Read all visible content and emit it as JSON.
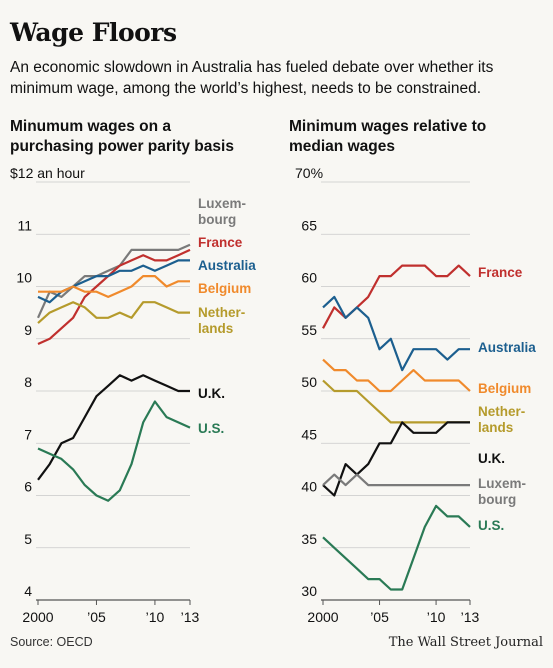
{
  "title": "Wage Floors",
  "subtitle": "An economic slowdown in Australia has fueled debate over whether its minimum wage, among the world’s highest, needs to be constrained.",
  "source": "Source: OECD",
  "publisher": "The Wall Street Journal",
  "chart_data": [
    {
      "type": "line",
      "title": "Minumum wages on a purchasing power parity basis",
      "title_lines": [
        "Minumum wages on a",
        "purchasing power parity basis"
      ],
      "ylabel": "$12 an hour",
      "ylim": [
        4,
        12
      ],
      "yticks": [
        "$12 an hour",
        "11",
        "10",
        "9",
        "8",
        "7",
        "6",
        "5",
        "4"
      ],
      "xlim": [
        2000,
        2013
      ],
      "xticks": [
        {
          "x": 2000,
          "label": "2000"
        },
        {
          "x": 2005,
          "label": "’05"
        },
        {
          "x": 2010,
          "label": "’10"
        },
        {
          "x": 2013,
          "label": "’13"
        }
      ],
      "grid": true,
      "x": [
        2000,
        2001,
        2002,
        2003,
        2004,
        2005,
        2006,
        2007,
        2008,
        2009,
        2010,
        2011,
        2012,
        2013
      ],
      "series": [
        {
          "name": "Luxembourg",
          "label_lines": [
            "Luxem-",
            "bourg"
          ],
          "color": "#7a7a7a",
          "values": [
            9.4,
            9.9,
            9.8,
            10.0,
            10.2,
            10.2,
            10.3,
            10.4,
            10.7,
            10.7,
            10.7,
            10.7,
            10.7,
            10.8
          ]
        },
        {
          "name": "France",
          "label_lines": [
            "France"
          ],
          "color": "#c0302e",
          "values": [
            8.9,
            9.0,
            9.2,
            9.4,
            9.8,
            10.0,
            10.2,
            10.4,
            10.5,
            10.6,
            10.5,
            10.5,
            10.6,
            10.7
          ]
        },
        {
          "name": "Australia",
          "label_lines": [
            "Australia"
          ],
          "color": "#1c5f8f",
          "values": [
            9.8,
            9.7,
            9.9,
            10.0,
            10.1,
            10.2,
            10.2,
            10.3,
            10.3,
            10.4,
            10.3,
            10.4,
            10.5,
            10.5
          ]
        },
        {
          "name": "Belgium",
          "label_lines": [
            "Belgium"
          ],
          "color": "#f08a2c",
          "values": [
            9.9,
            9.9,
            9.9,
            10.0,
            9.9,
            9.9,
            9.8,
            9.9,
            10.0,
            10.2,
            10.2,
            10.0,
            10.1,
            10.1
          ]
        },
        {
          "name": "Netherlands",
          "label_lines": [
            "Nether-",
            "lands"
          ],
          "color": "#b59b2c",
          "values": [
            9.3,
            9.5,
            9.6,
            9.7,
            9.6,
            9.4,
            9.4,
            9.5,
            9.4,
            9.7,
            9.7,
            9.6,
            9.5,
            9.5
          ]
        },
        {
          "name": "U.K.",
          "label_lines": [
            "U.K."
          ],
          "color": "#111111",
          "values": [
            6.3,
            6.6,
            7.0,
            7.1,
            7.5,
            7.9,
            8.1,
            8.3,
            8.2,
            8.3,
            8.2,
            8.1,
            8.0,
            8.0
          ]
        },
        {
          "name": "U.S.",
          "label_lines": [
            "U.S."
          ],
          "color": "#2a7a55",
          "values": [
            6.9,
            6.8,
            6.7,
            6.5,
            6.2,
            6.0,
            5.9,
            6.1,
            6.6,
            7.4,
            7.8,
            7.5,
            7.4,
            7.3
          ]
        }
      ]
    },
    {
      "type": "line",
      "title": "Minimum wages relative to median wages",
      "title_lines": [
        "Minimum wages relative to",
        "median wages"
      ],
      "ylabel": "70%",
      "ylim": [
        30,
        70
      ],
      "yticks": [
        "70%",
        "65",
        "60",
        "55",
        "50",
        "45",
        "40",
        "35",
        "30"
      ],
      "xlim": [
        2000,
        2013
      ],
      "xticks": [
        {
          "x": 2000,
          "label": "2000"
        },
        {
          "x": 2005,
          "label": "’05"
        },
        {
          "x": 2010,
          "label": "’10"
        },
        {
          "x": 2013,
          "label": "’13"
        }
      ],
      "grid": true,
      "x": [
        2000,
        2001,
        2002,
        2003,
        2004,
        2005,
        2006,
        2007,
        2008,
        2009,
        2010,
        2011,
        2012,
        2013
      ],
      "series": [
        {
          "name": "France",
          "label_lines": [
            "France"
          ],
          "color": "#c0302e",
          "values": [
            56,
            58,
            57,
            58,
            59,
            61,
            61,
            62,
            62,
            62,
            61,
            61,
            62,
            61
          ]
        },
        {
          "name": "Australia",
          "label_lines": [
            "Australia"
          ],
          "color": "#1c5f8f",
          "values": [
            58,
            59,
            57,
            58,
            57,
            54,
            55,
            52,
            54,
            54,
            54,
            53,
            54,
            54
          ]
        },
        {
          "name": "Belgium",
          "label_lines": [
            "Belgium"
          ],
          "color": "#f08a2c",
          "values": [
            53,
            52,
            52,
            51,
            51,
            50,
            50,
            51,
            52,
            51,
            51,
            51,
            51,
            50
          ]
        },
        {
          "name": "Netherlands",
          "label_lines": [
            "Nether-",
            "lands"
          ],
          "color": "#b59b2c",
          "values": [
            51,
            50,
            50,
            50,
            49,
            48,
            47,
            47,
            47,
            47,
            47,
            47,
            47,
            47
          ]
        },
        {
          "name": "U.K.",
          "label_lines": [
            "U.K."
          ],
          "color": "#111111",
          "values": [
            41,
            40,
            43,
            42,
            43,
            45,
            45,
            47,
            46,
            46,
            46,
            47,
            47,
            47
          ]
        },
        {
          "name": "Luxembourg",
          "label_lines": [
            "Luxem-",
            "bourg"
          ],
          "color": "#7a7a7a",
          "values": [
            41,
            42,
            41,
            42,
            41,
            41,
            41,
            41,
            41,
            41,
            41,
            41,
            41,
            41
          ]
        },
        {
          "name": "U.S.",
          "label_lines": [
            "U.S."
          ],
          "color": "#2a7a55",
          "values": [
            36,
            35,
            34,
            33,
            32,
            32,
            31,
            31,
            34,
            37,
            39,
            38,
            38,
            37
          ]
        }
      ]
    }
  ]
}
